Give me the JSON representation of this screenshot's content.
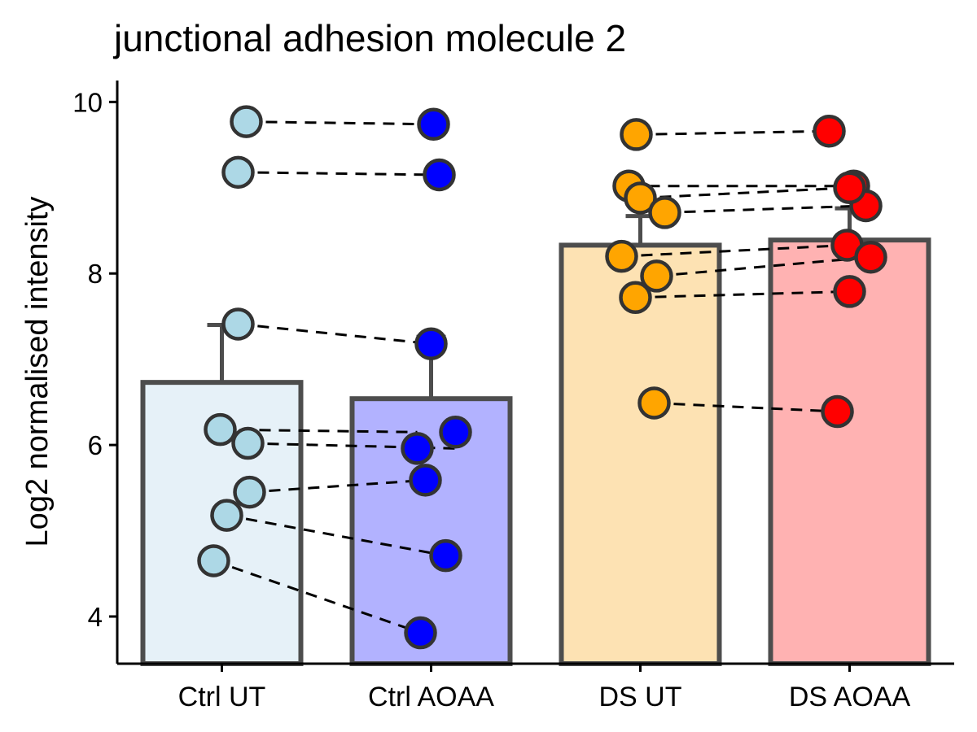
{
  "chart_data": {
    "type": "bar",
    "title": "junctional adhesion molecule 2",
    "xlabel": "",
    "ylabel": "Log2 normalised intensity",
    "ylim": [
      3.45,
      10.25
    ],
    "yticks": [
      4,
      6,
      8,
      10
    ],
    "grid": false,
    "legend": "none",
    "categories": [
      "Ctrl UT",
      "Ctrl AOAA",
      "DS UT",
      "DS AOAA"
    ],
    "values": [
      6.73,
      6.54,
      8.33,
      8.39
    ],
    "error_upper": [
      7.4,
      7.26,
      8.67,
      8.76
    ],
    "bar_fills": [
      "#e6f1f8",
      "#b2b2ff",
      "#fde2b3",
      "#ffb2b2"
    ],
    "point_colors": [
      "#add8e6",
      "#0000ff",
      "#ffa500",
      "#ff0000"
    ],
    "bar_outline_color": "#4d4d4d",
    "points": [
      [
        9.77,
        9.18,
        7.41,
        6.18,
        6.02,
        5.45,
        5.18,
        4.65
      ],
      [
        9.74,
        9.15,
        7.18,
        5.96,
        6.15,
        5.59,
        4.71,
        3.81
      ],
      [
        9.62,
        9.02,
        8.88,
        8.71,
        8.2,
        7.97,
        7.72,
        6.49
      ],
      [
        9.66,
        9.02,
        8.79,
        8.33,
        8.19,
        7.79,
        6.39,
        9.0
      ]
    ],
    "paired_lines": [
      [
        9.77,
        9.74
      ],
      [
        9.18,
        9.15
      ],
      [
        7.41,
        7.18
      ],
      [
        6.18,
        6.15
      ],
      [
        6.02,
        5.96
      ],
      [
        5.45,
        5.59
      ],
      [
        5.18,
        4.71
      ],
      [
        4.65,
        3.81
      ],
      [
        9.62,
        9.66
      ],
      [
        9.02,
        9.02
      ],
      [
        8.88,
        9.0
      ],
      [
        8.71,
        8.79
      ],
      [
        8.2,
        8.33
      ],
      [
        7.97,
        8.19
      ],
      [
        7.72,
        7.79
      ],
      [
        6.49,
        6.39
      ]
    ]
  }
}
